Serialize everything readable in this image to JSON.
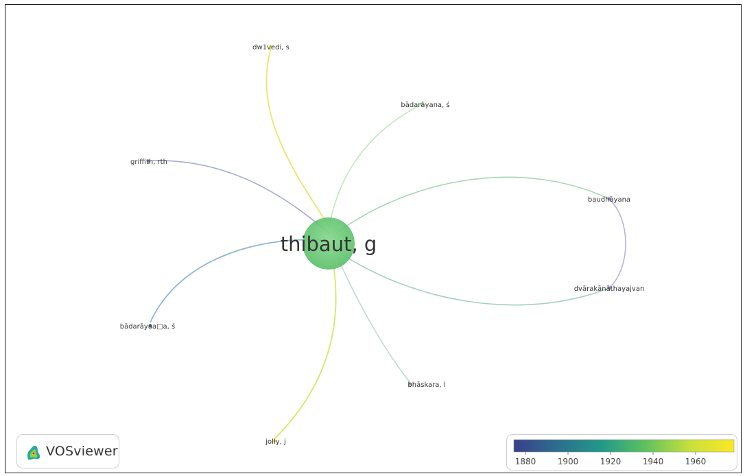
{
  "network": {
    "center": {
      "label": "thibaut, g"
    },
    "nodes": [
      {
        "id": "dwivedi",
        "label": "dw1vedi, s",
        "color": "#e3e34a"
      },
      {
        "id": "badarayana1",
        "label": "bādarāyana, ś",
        "color": "#a4d6a2"
      },
      {
        "id": "griffith",
        "label": "griffith, rth",
        "color": "#7d84c0"
      },
      {
        "id": "baudhayana",
        "label": "baudhāyana",
        "color": "#8a86c6"
      },
      {
        "id": "dvarakanatha",
        "label": "dvārakānāthayajvan",
        "color": "#8a86c6"
      },
      {
        "id": "badarayana2",
        "label": "bādarāyaa□a, ś",
        "color": "#3d6d9a"
      },
      {
        "id": "bhaskara",
        "label": "bhāskara, l",
        "color": "#a3a3c8"
      },
      {
        "id": "jolly",
        "label": "jolly, j",
        "color": "#e6d53a"
      }
    ]
  },
  "legend": {
    "ticks": [
      "1880",
      "1900",
      "1920",
      "1940",
      "1960"
    ],
    "colors": [
      "#3b3f8c",
      "#2c6f8e",
      "#22998a",
      "#5fc25f",
      "#c8e03c",
      "#fde725"
    ]
  },
  "logo": {
    "text": "VOSviewer",
    "icon": "vosviewer-logo-icon"
  }
}
